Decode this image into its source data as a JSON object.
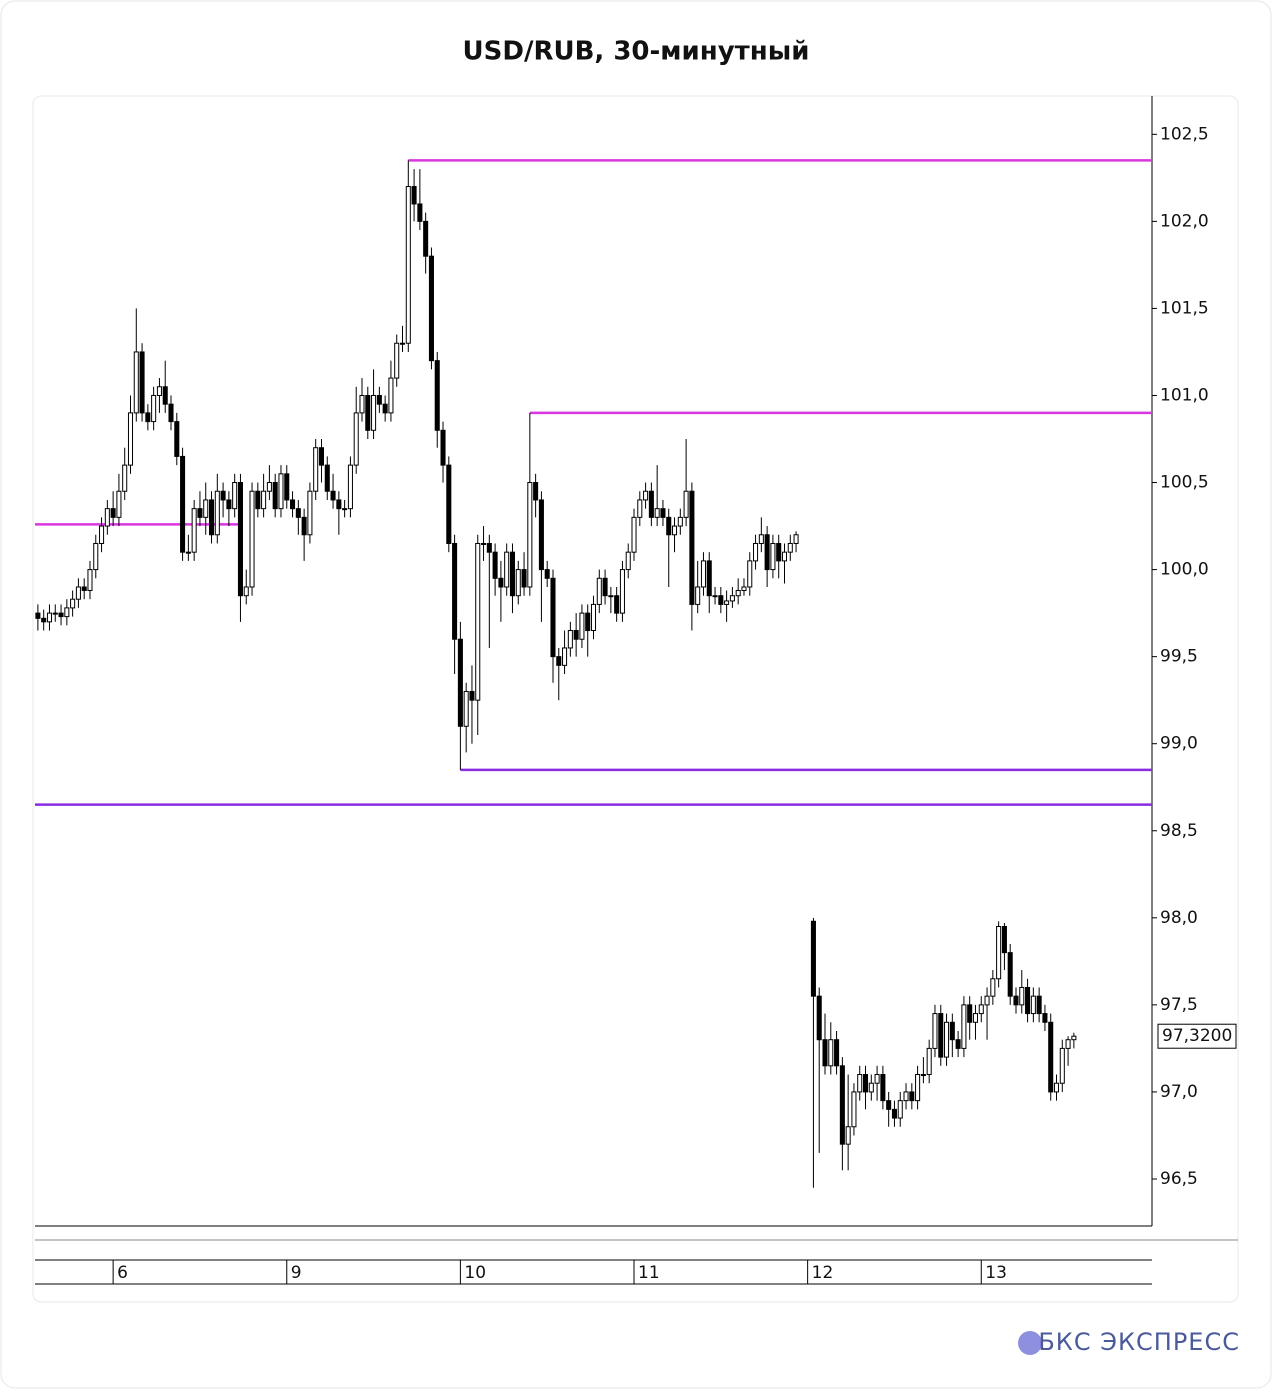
{
  "brand": "БКС ЭКСПРЕСС",
  "chart_data": {
    "type": "candlestick",
    "title": "USD/RUB, 30-минутный",
    "x": [
      0,
      1,
      2,
      3,
      4,
      5,
      6,
      7,
      8,
      9,
      10,
      11,
      12,
      13,
      14,
      15,
      16,
      17,
      18,
      19,
      20,
      21,
      22,
      23,
      24,
      25,
      26,
      27,
      28,
      29,
      30,
      31,
      32,
      33,
      34,
      35,
      36,
      37,
      38,
      39,
      40,
      41,
      42,
      43,
      44,
      45,
      46,
      47,
      48,
      49,
      50,
      51,
      52,
      53,
      54,
      55,
      56,
      57,
      58,
      59,
      60,
      61,
      62,
      63,
      64,
      65,
      66,
      67,
      68,
      69,
      70,
      71,
      72,
      73,
      74,
      75,
      76,
      77,
      78,
      79,
      80,
      81,
      82,
      83,
      84,
      85,
      86,
      87,
      88,
      89,
      90,
      91,
      92,
      93,
      94,
      95,
      96,
      97,
      98,
      99,
      100,
      101,
      102,
      103,
      104,
      105,
      106,
      107,
      108,
      109,
      110,
      111,
      112,
      113,
      114,
      115,
      116,
      117,
      118,
      119,
      120,
      121,
      122,
      123,
      124,
      125,
      126,
      127,
      128,
      129,
      130,
      131,
      134,
      135,
      136,
      137,
      138,
      139,
      140,
      141,
      142,
      143,
      144,
      145,
      146,
      147,
      148,
      149,
      150,
      151,
      152,
      153,
      154,
      155,
      156,
      157,
      158,
      159,
      160,
      161,
      162,
      163,
      164,
      165,
      166,
      167,
      168,
      169,
      170,
      171,
      172,
      173,
      174,
      175,
      176,
      177,
      178,
      179
    ],
    "open": [
      99.75,
      99.72,
      99.7,
      99.75,
      99.75,
      99.73,
      99.78,
      99.83,
      99.9,
      99.88,
      100.0,
      100.15,
      100.25,
      100.35,
      100.3,
      100.45,
      100.6,
      100.9,
      101.25,
      100.9,
      100.85,
      101.0,
      101.05,
      100.95,
      100.85,
      100.65,
      100.1,
      100.1,
      100.35,
      100.3,
      100.4,
      100.2,
      100.45,
      100.4,
      100.35,
      100.5,
      99.85,
      99.9,
      100.45,
      100.35,
      100.45,
      100.5,
      100.35,
      100.55,
      100.4,
      100.35,
      100.3,
      100.2,
      100.45,
      100.7,
      100.6,
      100.45,
      100.4,
      100.35,
      100.35,
      100.6,
      100.9,
      101.0,
      100.8,
      101.0,
      100.95,
      100.9,
      101.1,
      101.3,
      101.3,
      102.2,
      102.1,
      102.0,
      101.8,
      101.2,
      100.8,
      100.6,
      100.15,
      99.6,
      99.1,
      99.3,
      99.25,
      100.15,
      100.15,
      100.1,
      99.95,
      99.9,
      100.1,
      99.85,
      100.0,
      99.9,
      100.5,
      100.4,
      100.0,
      99.95,
      99.5,
      99.45,
      99.55,
      99.65,
      99.6,
      99.75,
      99.65,
      99.8,
      99.95,
      99.85,
      99.85,
      99.75,
      100.0,
      100.1,
      100.3,
      100.4,
      100.45,
      100.3,
      100.35,
      100.3,
      100.2,
      100.25,
      100.3,
      100.45,
      99.8,
      99.9,
      100.05,
      99.85,
      99.85,
      99.8,
      99.82,
      99.85,
      99.88,
      99.9,
      100.05,
      100.15,
      100.2,
      100.0,
      100.15,
      100.05,
      100.1,
      100.15,
      97.98,
      97.55,
      97.3,
      97.15,
      97.3,
      97.15,
      96.7,
      96.8,
      97.0,
      97.1,
      97.0,
      97.05,
      97.1,
      96.95,
      96.9,
      96.85,
      96.95,
      97.0,
      96.95,
      97.1,
      97.1,
      97.25,
      97.45,
      97.2,
      97.4,
      97.3,
      97.25,
      97.5,
      97.4,
      97.45,
      97.5,
      97.55,
      97.65,
      97.95,
      97.8,
      97.55,
      97.5,
      97.6,
      97.45,
      97.55,
      97.45,
      97.4,
      97.0,
      97.05,
      97.25,
      97.3
    ],
    "high": [
      99.8,
      99.77,
      99.8,
      99.8,
      99.8,
      99.83,
      99.88,
      99.95,
      99.95,
      100.05,
      100.2,
      100.3,
      100.4,
      100.45,
      100.55,
      100.7,
      101.0,
      101.5,
      101.3,
      100.95,
      101.05,
      101.1,
      101.2,
      101.0,
      100.9,
      100.7,
      100.2,
      100.4,
      100.45,
      100.5,
      100.45,
      100.55,
      100.5,
      100.45,
      100.55,
      100.55,
      100.0,
      100.5,
      100.5,
      100.55,
      100.6,
      100.55,
      100.6,
      100.6,
      100.45,
      100.4,
      100.35,
      100.5,
      100.75,
      100.75,
      100.65,
      100.55,
      100.45,
      100.4,
      100.65,
      101.05,
      101.1,
      101.05,
      101.15,
      101.05,
      101.0,
      101.2,
      101.35,
      101.4,
      102.35,
      102.3,
      102.3,
      102.05,
      101.85,
      101.25,
      100.85,
      100.65,
      100.2,
      99.7,
      99.35,
      99.45,
      100.2,
      100.25,
      100.2,
      100.15,
      100.05,
      100.15,
      100.15,
      100.05,
      100.1,
      100.9,
      100.55,
      100.45,
      100.05,
      100.0,
      99.55,
      99.65,
      99.7,
      99.75,
      99.8,
      99.8,
      99.85,
      100.0,
      100.0,
      99.9,
      99.9,
      100.05,
      100.15,
      100.35,
      100.45,
      100.5,
      100.5,
      100.6,
      100.4,
      100.35,
      100.3,
      100.35,
      100.75,
      100.5,
      100.05,
      100.1,
      100.1,
      99.9,
      99.9,
      99.88,
      99.9,
      99.95,
      99.95,
      100.1,
      100.2,
      100.3,
      100.25,
      100.2,
      100.2,
      100.15,
      100.2,
      100.22,
      98.0,
      97.6,
      97.45,
      97.4,
      97.35,
      97.2,
      97.1,
      97.05,
      97.15,
      97.15,
      97.1,
      97.15,
      97.15,
      97.0,
      96.95,
      97.0,
      97.05,
      97.05,
      97.15,
      97.2,
      97.3,
      97.5,
      97.5,
      97.45,
      97.45,
      97.35,
      97.55,
      97.55,
      97.5,
      97.55,
      97.6,
      97.7,
      97.98,
      97.97,
      97.85,
      97.6,
      97.7,
      97.65,
      97.6,
      97.6,
      97.5,
      97.45,
      97.1,
      97.3,
      97.32,
      97.34
    ],
    "low": [
      99.65,
      99.65,
      99.65,
      99.7,
      99.68,
      99.68,
      99.73,
      99.78,
      99.83,
      99.83,
      99.95,
      100.1,
      100.2,
      100.25,
      100.25,
      100.4,
      100.55,
      100.85,
      100.85,
      100.8,
      100.8,
      100.9,
      100.9,
      100.8,
      100.6,
      100.05,
      100.05,
      100.05,
      100.25,
      100.2,
      100.15,
      100.15,
      100.3,
      100.25,
      100.3,
      99.7,
      99.8,
      99.85,
      100.3,
      100.3,
      100.4,
      100.3,
      100.3,
      100.35,
      100.3,
      100.2,
      100.05,
      100.15,
      100.4,
      100.5,
      100.4,
      100.35,
      100.2,
      100.3,
      100.3,
      100.55,
      100.85,
      100.75,
      100.75,
      100.9,
      100.85,
      100.85,
      101.05,
      101.25,
      101.25,
      102.0,
      101.95,
      101.7,
      101.15,
      100.7,
      100.5,
      100.1,
      99.4,
      98.85,
      98.95,
      99.0,
      99.05,
      100.05,
      99.55,
      99.85,
      99.7,
      99.85,
      99.75,
      99.8,
      99.85,
      99.85,
      100.3,
      99.7,
      99.9,
      99.35,
      99.25,
      99.4,
      99.5,
      99.5,
      99.55,
      99.5,
      99.6,
      99.75,
      99.8,
      99.75,
      99.7,
      99.7,
      99.95,
      100.05,
      100.25,
      100.35,
      100.25,
      100.25,
      100.25,
      99.9,
      100.1,
      100.2,
      100.25,
      99.65,
      99.75,
      99.85,
      99.75,
      99.8,
      99.75,
      99.7,
      99.78,
      99.8,
      99.85,
      99.85,
      100.0,
      100.1,
      99.9,
      99.95,
      99.95,
      99.92,
      100.05,
      100.1,
      96.45,
      96.65,
      97.1,
      97.1,
      97.1,
      96.55,
      96.55,
      96.75,
      96.95,
      96.9,
      96.95,
      96.95,
      96.9,
      96.8,
      96.8,
      96.8,
      96.9,
      96.9,
      96.9,
      97.05,
      97.05,
      97.2,
      97.15,
      97.15,
      97.2,
      97.2,
      97.2,
      97.3,
      97.3,
      97.4,
      97.3,
      97.5,
      97.6,
      97.7,
      97.5,
      97.45,
      97.45,
      97.4,
      97.4,
      97.4,
      97.35,
      96.95,
      96.95,
      97.0,
      97.15,
      97.25
    ],
    "close": [
      99.72,
      99.7,
      99.75,
      99.75,
      99.73,
      99.78,
      99.83,
      99.9,
      99.88,
      100.0,
      100.15,
      100.25,
      100.35,
      100.3,
      100.45,
      100.6,
      100.9,
      101.25,
      100.9,
      100.85,
      101.0,
      101.05,
      100.95,
      100.85,
      100.65,
      100.1,
      100.1,
      100.35,
      100.3,
      100.4,
      100.2,
      100.45,
      100.4,
      100.35,
      100.5,
      99.85,
      99.9,
      100.45,
      100.35,
      100.45,
      100.5,
      100.35,
      100.55,
      100.4,
      100.35,
      100.3,
      100.2,
      100.45,
      100.7,
      100.6,
      100.45,
      100.4,
      100.35,
      100.35,
      100.6,
      100.9,
      101.0,
      100.8,
      101.0,
      100.95,
      100.9,
      101.1,
      101.3,
      101.3,
      102.2,
      102.1,
      102.0,
      101.8,
      101.2,
      100.8,
      100.6,
      100.15,
      99.6,
      99.1,
      99.3,
      99.25,
      100.15,
      100.15,
      100.1,
      99.95,
      99.9,
      100.1,
      99.85,
      100.0,
      99.9,
      100.5,
      100.4,
      100.0,
      99.95,
      99.5,
      99.45,
      99.55,
      99.65,
      99.6,
      99.75,
      99.65,
      99.8,
      99.95,
      99.85,
      99.85,
      99.75,
      100.0,
      100.1,
      100.3,
      100.4,
      100.45,
      100.3,
      100.35,
      100.3,
      100.2,
      100.25,
      100.3,
      100.45,
      99.8,
      99.9,
      100.05,
      99.85,
      99.85,
      99.8,
      99.82,
      99.85,
      99.88,
      99.9,
      100.05,
      100.15,
      100.2,
      100.0,
      100.15,
      100.05,
      100.1,
      100.15,
      100.2,
      97.55,
      97.3,
      97.15,
      97.3,
      97.15,
      96.7,
      96.8,
      97.0,
      97.1,
      97.0,
      97.05,
      97.1,
      96.95,
      96.9,
      96.85,
      96.95,
      97.0,
      96.95,
      97.1,
      97.1,
      97.25,
      97.45,
      97.2,
      97.4,
      97.3,
      97.25,
      97.5,
      97.4,
      97.45,
      97.5,
      97.55,
      97.65,
      97.95,
      97.8,
      97.55,
      97.5,
      97.6,
      97.45,
      97.55,
      97.45,
      97.4,
      97.0,
      97.05,
      97.25,
      97.3,
      97.32
    ],
    "xlim": [
      -0.5,
      192.5
    ],
    "xticks": [
      {
        "value": 13,
        "label": "6"
      },
      {
        "value": 43,
        "label": "9"
      },
      {
        "value": 73,
        "label": "10"
      },
      {
        "value": 103,
        "label": "11"
      },
      {
        "value": 133,
        "label": "12"
      },
      {
        "value": 163,
        "label": "13"
      }
    ],
    "ylim": [
      96.23,
      102.72
    ],
    "yticks": [
      {
        "value": 96.5,
        "label": "96,5"
      },
      {
        "value": 97,
        "label": "97,0"
      },
      {
        "value": 97.5,
        "label": "97,5"
      },
      {
        "value": 98,
        "label": "98,0"
      },
      {
        "value": 98.5,
        "label": "98,5"
      },
      {
        "value": 99,
        "label": "99,0"
      },
      {
        "value": 99.5,
        "label": "99,5"
      },
      {
        "value": 100,
        "label": "100,0"
      },
      {
        "value": 100.5,
        "label": "100,5"
      },
      {
        "value": 101,
        "label": "101,0"
      },
      {
        "value": 101.5,
        "label": "101,5"
      },
      {
        "value": 102,
        "label": "102,0"
      },
      {
        "value": 102.5,
        "label": "102,5"
      }
    ],
    "levels": [
      {
        "value": 102.35,
        "from": 64,
        "color": "#d936e0"
      },
      {
        "value": 100.9,
        "from": 85,
        "color": "#d936e0"
      },
      {
        "value": 100.26,
        "from": -0.5,
        "to": 35,
        "color": "#d936e0"
      },
      {
        "value": 98.85,
        "from": 73,
        "color": "#8a2be2"
      },
      {
        "value": 98.65,
        "from": -0.5,
        "color": "#8a2be2"
      }
    ],
    "last_price": {
      "value": 97.32,
      "label": "97,3200"
    },
    "up_color": "#ffffff",
    "down_color": "#000000"
  }
}
